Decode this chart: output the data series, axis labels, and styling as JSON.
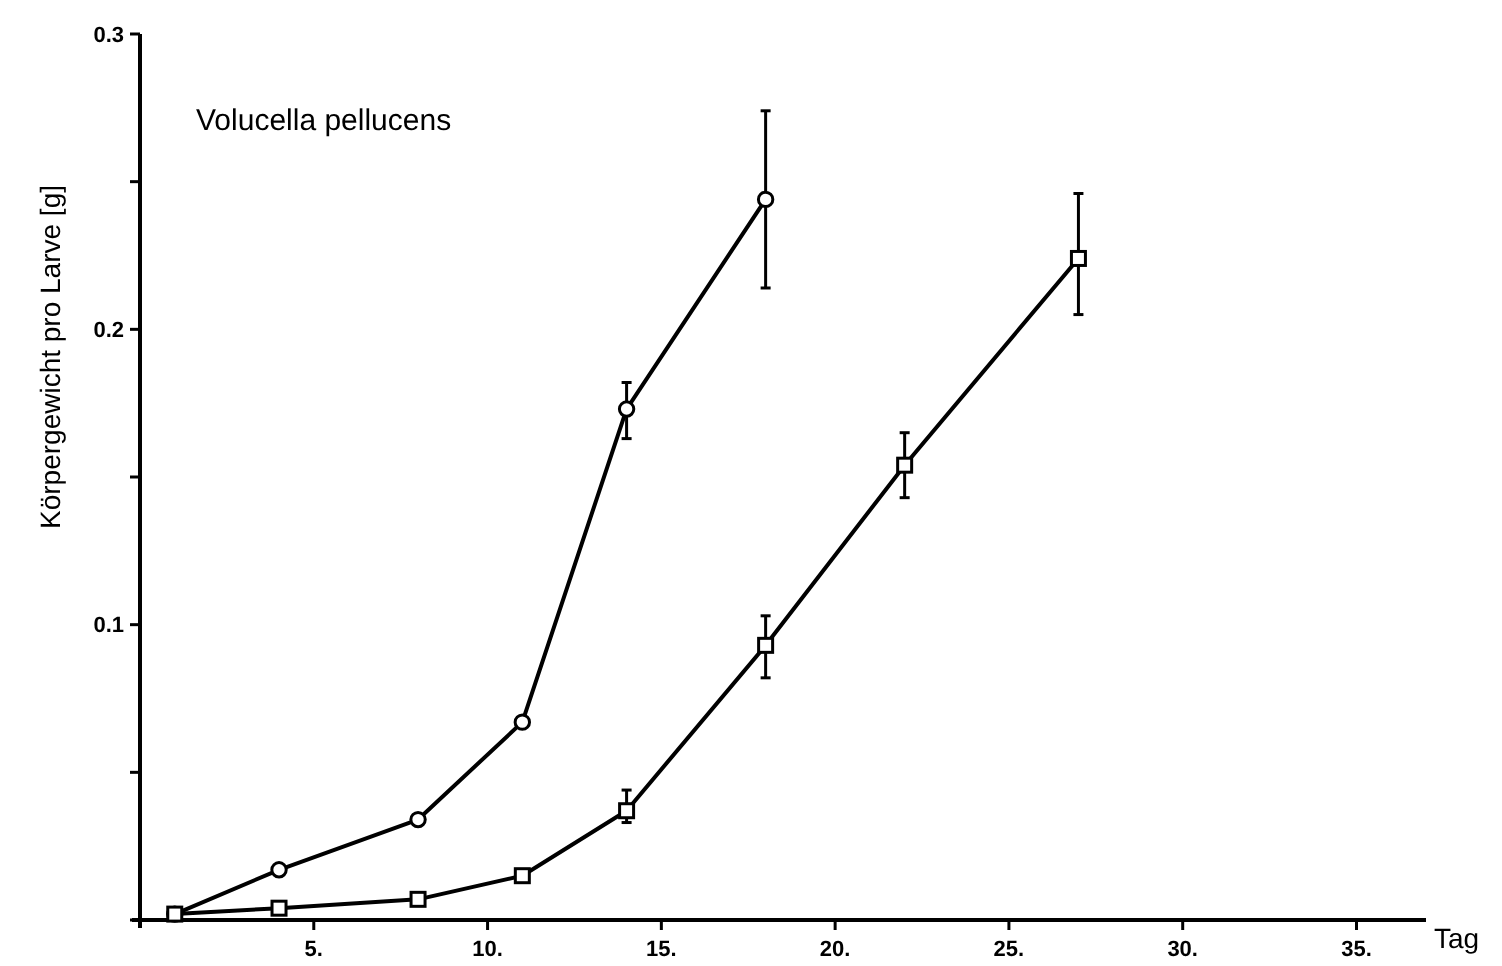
{
  "chart_data": {
    "type": "line",
    "title": "Volucella pellucens",
    "xlabel": "Tag",
    "ylabel": "Körpergewicht pro Larve [g]",
    "xlim": [
      0,
      37
    ],
    "ylim": [
      0,
      0.3
    ],
    "xticks": [
      {
        "value": 5,
        "label": "5."
      },
      {
        "value": 10,
        "label": "10."
      },
      {
        "value": 15,
        "label": "15."
      },
      {
        "value": 20,
        "label": "20."
      },
      {
        "value": 25,
        "label": "25."
      },
      {
        "value": 30,
        "label": "30."
      },
      {
        "value": 35,
        "label": "35."
      }
    ],
    "yticks": [
      {
        "value": 0,
        "label": null
      },
      {
        "value": 0.05,
        "label": null
      },
      0.1,
      {
        "value": 0.15,
        "label": null
      },
      0.2,
      {
        "value": 0.25,
        "label": null
      },
      0.3
    ],
    "grid": false,
    "line_style": "solid",
    "series": [
      {
        "color": "#000000",
        "marker": "circle",
        "x": [
          1,
          4,
          8,
          11,
          14,
          18
        ],
        "values": [
          0.002,
          0.017,
          0.034,
          0.067,
          0.173,
          0.244
        ],
        "errors": [
          null,
          null,
          null,
          null,
          [
            0.163,
            0.182
          ],
          [
            0.214,
            0.274
          ]
        ]
      },
      {
        "color": "#000000",
        "marker": "square",
        "x": [
          1,
          4,
          8,
          11,
          14,
          18,
          22,
          27
        ],
        "values": [
          0.002,
          0.004,
          0.007,
          0.015,
          0.037,
          0.093,
          0.154,
          0.224
        ],
        "errors": [
          null,
          null,
          null,
          null,
          [
            0.033,
            0.044
          ],
          [
            0.082,
            0.103
          ],
          [
            0.143,
            0.165
          ],
          [
            0.205,
            0.246
          ]
        ]
      }
    ]
  }
}
